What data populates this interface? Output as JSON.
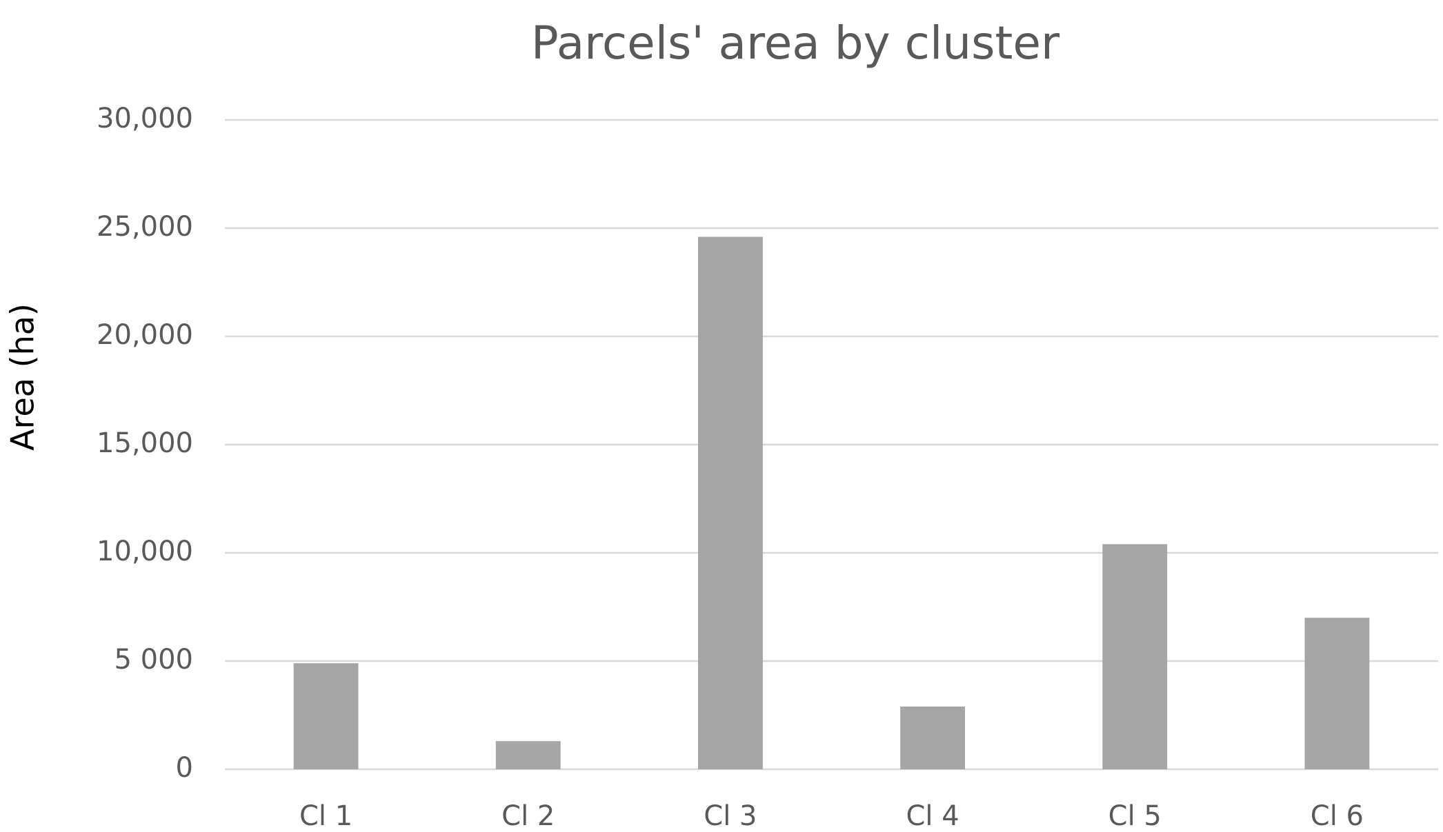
{
  "chart_data": {
    "type": "bar",
    "title": "Parcels' area by cluster",
    "y_label": "Area (ha)",
    "categories": [
      "Cl 1",
      "Cl 2",
      "Cl 3",
      "Cl 4",
      "Cl 5",
      "Cl 6"
    ],
    "values": [
      4900,
      1300,
      24600,
      2900,
      10400,
      7000
    ],
    "color": "#a5a5a5",
    "ylim": [
      0,
      30000
    ],
    "yticks": [
      0,
      {
        "value": 5000,
        "label": "5 000"
      },
      {
        "value": 10000,
        "label": "10,000"
      },
      {
        "value": 15000,
        "label": "15,000"
      },
      {
        "value": 20000,
        "label": "20,000"
      },
      {
        "value": 25000,
        "label": "25,000"
      },
      {
        "value": 30000,
        "label": "30,000"
      }
    ],
    "grid": true
  }
}
